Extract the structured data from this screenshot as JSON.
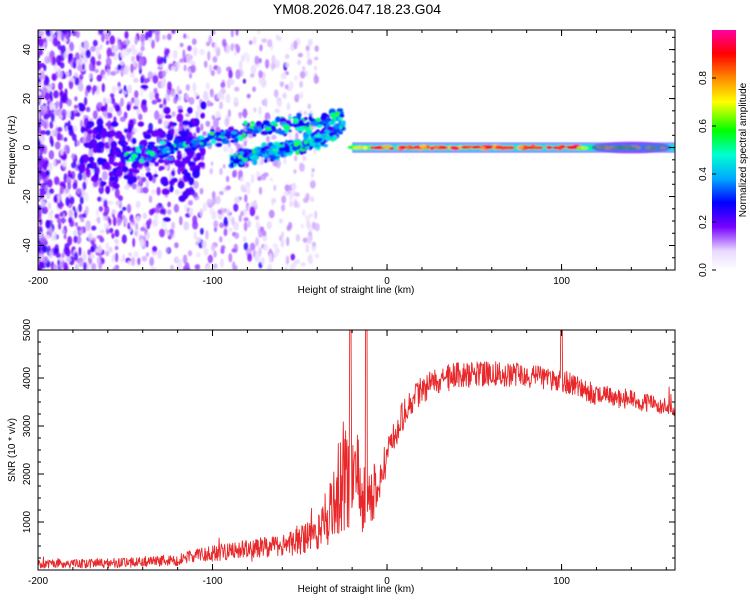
{
  "page_title": "YM08.2026.047.18.23.G04",
  "colors": {
    "snr_line": "#e8282a",
    "axis": "#000000",
    "colormap": [
      "#ff00a0",
      "#ff0000",
      "#ff8a00",
      "#ffff00",
      "#00ff00",
      "#00ffd0",
      "#00a8ff",
      "#0000ff",
      "#7700ff",
      "#ffffff"
    ]
  },
  "chart_data": [
    {
      "type": "heatmap",
      "title": "YM08.2026.047.18.23.G04",
      "xlabel": "Height of straight line (km)",
      "ylabel": "Frequency (Hz)",
      "xlim": [
        -200,
        165
      ],
      "ylim": [
        -50,
        48
      ],
      "xticks": [
        -200,
        -100,
        0,
        100
      ],
      "xtick_labels": [
        "-200",
        "-100",
        "0",
        "100"
      ],
      "yticks": [
        -40,
        -20,
        0,
        20,
        40
      ],
      "ytick_labels": [
        "-40",
        "-20",
        "0",
        "20",
        "40"
      ],
      "colorbar": {
        "label": "Normalized spectral amplitude",
        "range": [
          0,
          1
        ],
        "ticks": [
          0.0,
          0.2,
          0.4,
          0.6,
          0.8
        ],
        "tick_labels": [
          "0.0",
          "0.2",
          "0.4",
          "0.6",
          "0.8"
        ]
      },
      "features": [
        {
          "name": "diffuse noise",
          "x_range": [
            -200,
            -60
          ],
          "freq_range": [
            -50,
            48
          ],
          "amplitude": 0.1
        },
        {
          "name": "rising doppler track",
          "x": [
            -150,
            -110,
            -80,
            -40,
            -25
          ],
          "freq": [
            -4,
            2,
            7,
            10,
            14
          ],
          "amplitude": 0.3
        },
        {
          "name": "lower doppler track",
          "x": [
            -90,
            -60,
            -40,
            -25
          ],
          "freq": [
            -5,
            -1,
            3,
            9
          ],
          "amplitude": 0.35
        },
        {
          "name": "direct signal line",
          "x_range": [
            -20,
            165
          ],
          "freq": 0,
          "amplitude": 0.95
        }
      ]
    },
    {
      "type": "line",
      "xlabel": "Height of straight line (km)",
      "ylabel": "SNR (10 * v/v)",
      "xlim": [
        -200,
        165
      ],
      "ylim": [
        0,
        5000
      ],
      "xticks": [
        -200,
        -100,
        0,
        100
      ],
      "xtick_labels": [
        "-200",
        "-100",
        "0",
        "100"
      ],
      "yticks": [
        1000,
        2000,
        3000,
        4000,
        5000
      ],
      "ytick_labels": [
        "1000",
        "2000",
        "3000",
        "4000",
        "5000"
      ],
      "series": [
        {
          "name": "SNR",
          "envelope_x": [
            -200,
            -150,
            -120,
            -100,
            -80,
            -60,
            -50,
            -40,
            -35,
            -30,
            -25,
            -20,
            -15,
            -10,
            -5,
            0,
            5,
            10,
            15,
            20,
            30,
            40,
            60,
            80,
            100,
            110,
            120,
            140,
            160,
            165
          ],
          "envelope_mean": [
            120,
            150,
            220,
            350,
            450,
            500,
            600,
            800,
            1100,
            1500,
            1900,
            2100,
            1700,
            1500,
            1800,
            2300,
            2900,
            3300,
            3600,
            3750,
            3950,
            4050,
            4100,
            4050,
            3950,
            3800,
            3650,
            3550,
            3400,
            3300
          ],
          "envelope_noise": [
            90,
            100,
            130,
            170,
            200,
            220,
            280,
            450,
            650,
            900,
            1200,
            1300,
            1000,
            700,
            500,
            380,
            340,
            320,
            300,
            290,
            280,
            270,
            260,
            250,
            240,
            230,
            220,
            200,
            180,
            180
          ],
          "peaks": [
            {
              "x": -21,
              "value": 5000
            },
            {
              "x": -12,
              "value": 5000
            },
            {
              "x": 100,
              "value": 5000
            }
          ]
        }
      ]
    }
  ]
}
